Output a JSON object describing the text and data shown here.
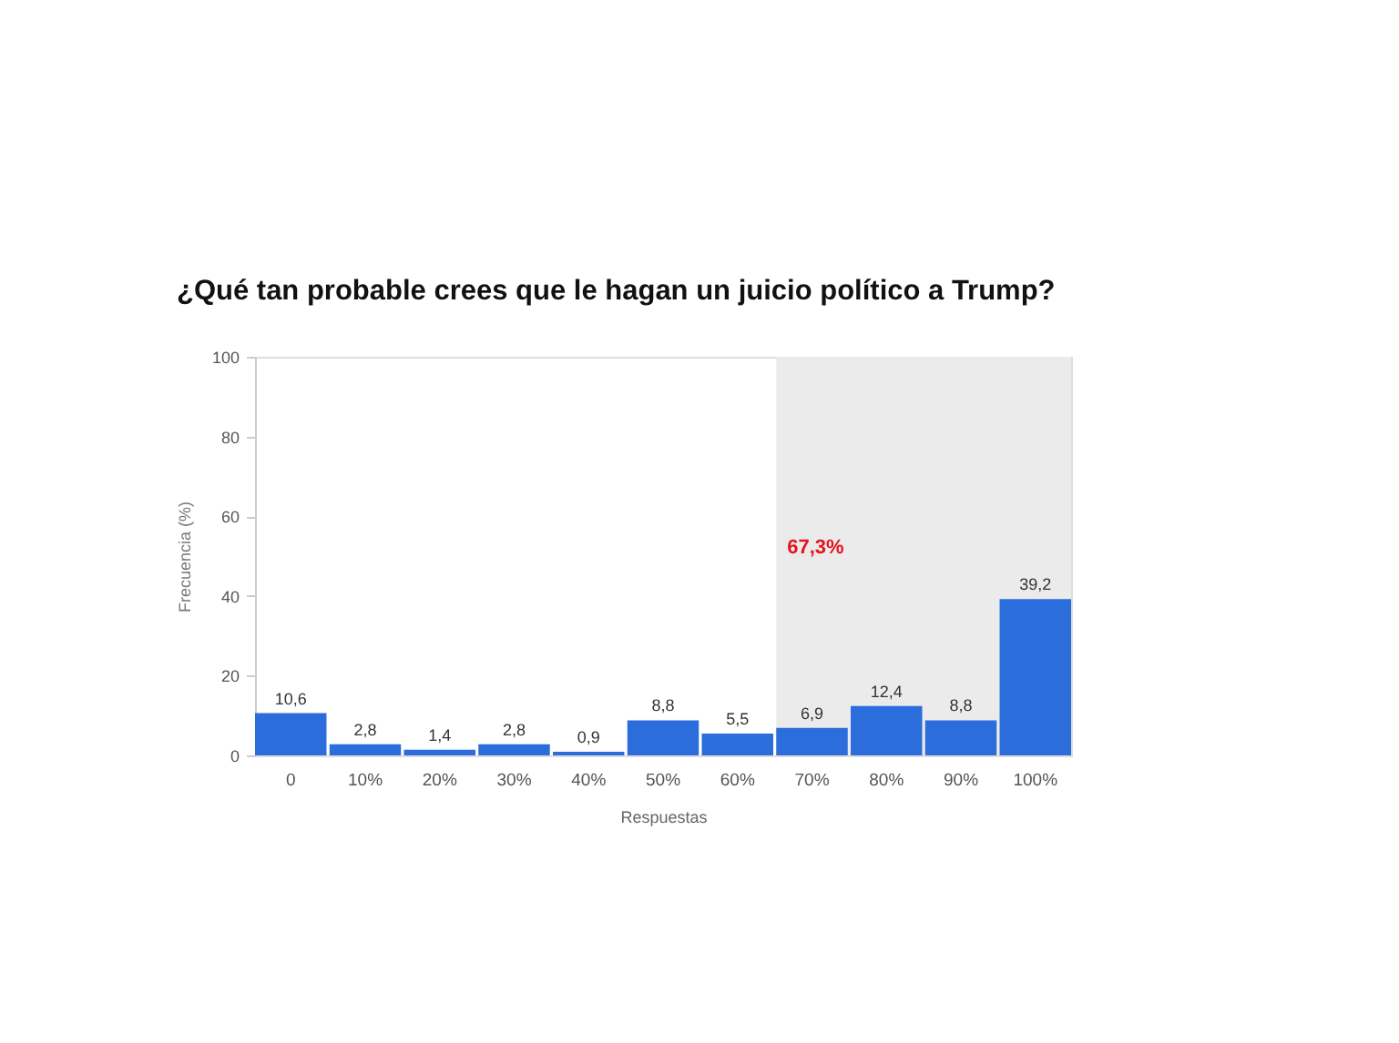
{
  "chart_data": {
    "type": "bar",
    "title": "¿Qué tan probable crees que le hagan un juicio político a Trump?",
    "xlabel": "Respuestas",
    "ylabel": "Frecuencia (%)",
    "categories": [
      "0",
      "10%",
      "20%",
      "30%",
      "40%",
      "50%",
      "60%",
      "70%",
      "80%",
      "90%",
      "100%"
    ],
    "values": [
      10.6,
      2.8,
      1.4,
      2.8,
      0.9,
      8.8,
      5.5,
      6.9,
      12.4,
      8.8,
      39.2
    ],
    "value_labels": [
      "10,6",
      "2,8",
      "1,4",
      "2,8",
      "0,9",
      "8,8",
      "5,5",
      "6,9",
      "12,4",
      "8,8",
      "39,2"
    ],
    "color": "#2a6ddb",
    "ylim": [
      0,
      100
    ],
    "yticks": [
      0,
      20,
      40,
      60,
      80,
      100
    ],
    "bands": [
      {
        "axis": "x",
        "from": "70%",
        "to": "100%",
        "label": "67,3%",
        "color": "#ebebeb"
      }
    ]
  }
}
